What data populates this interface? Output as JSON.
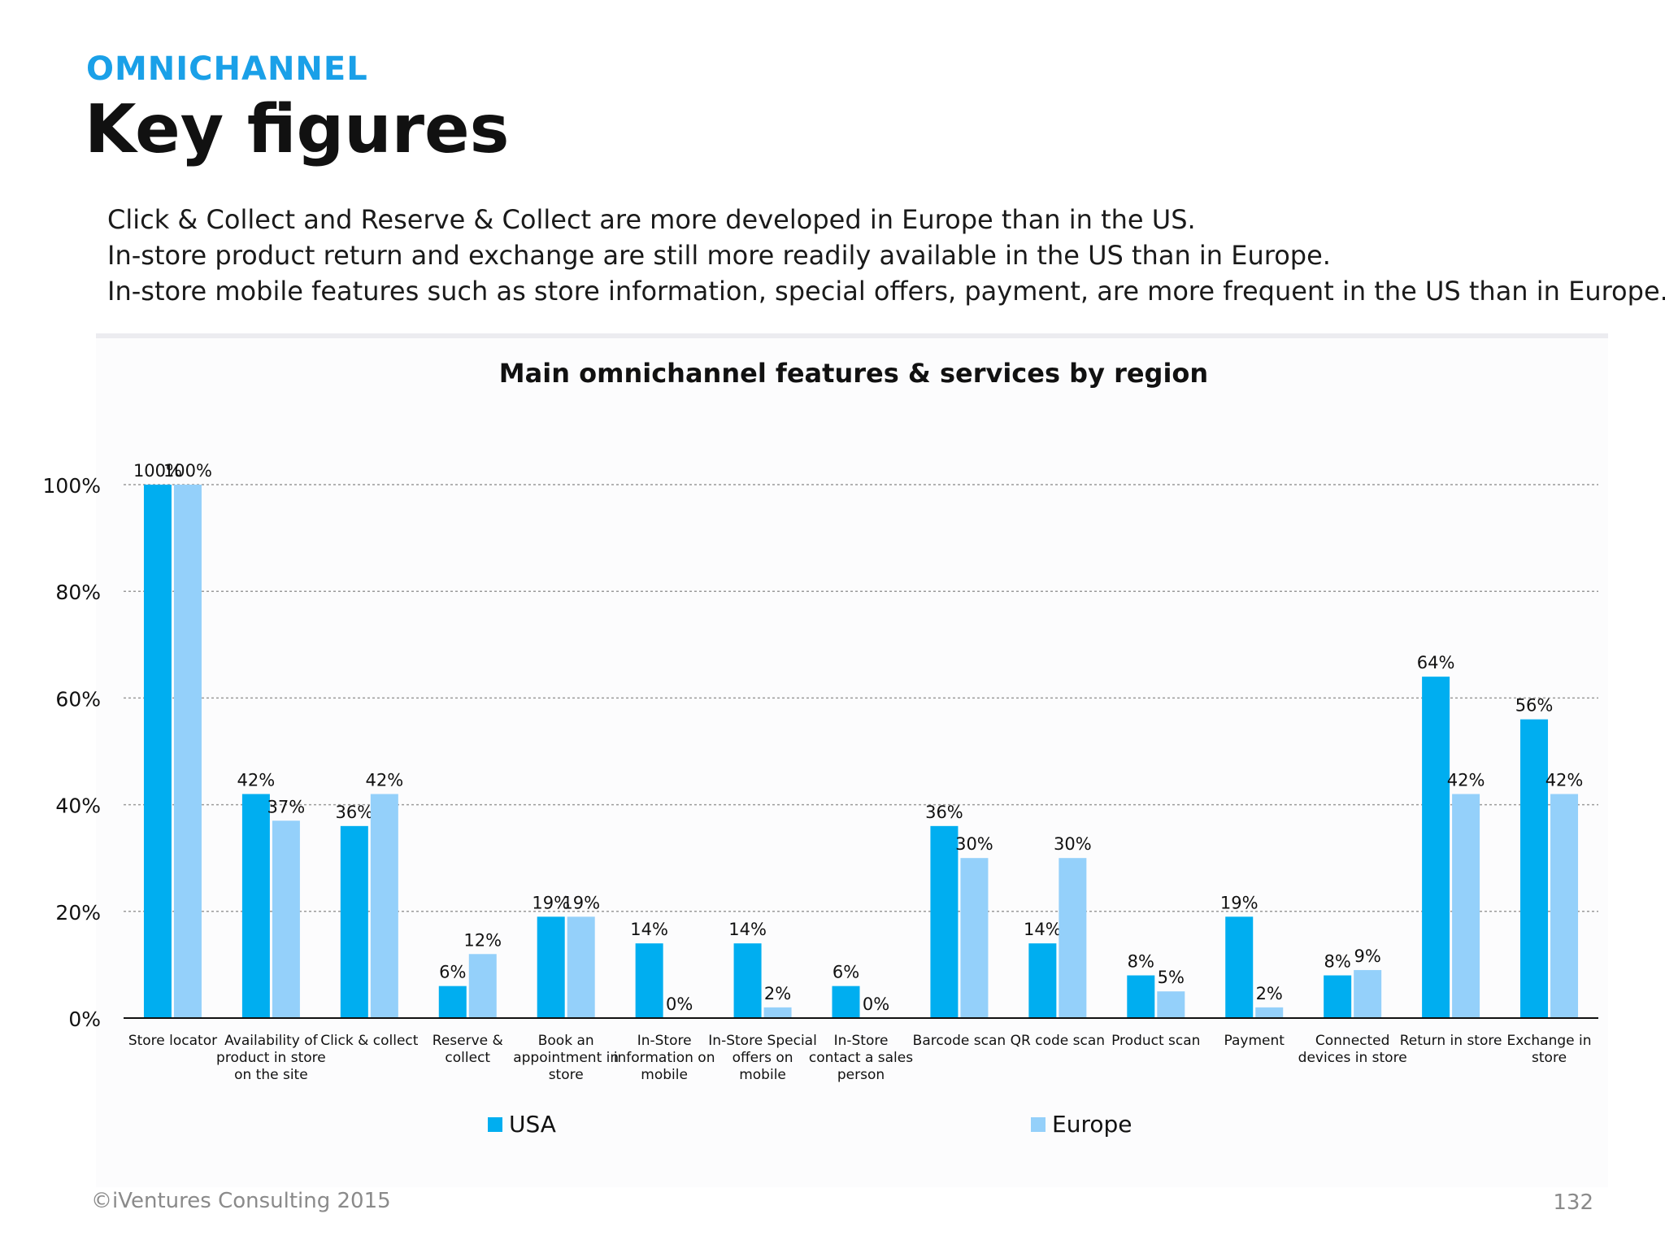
{
  "header": {
    "section": "OMNICHANNEL",
    "title": "Key figures"
  },
  "intro_lines": [
    "Click & Collect and Reserve & Collect are more developed in Europe than in the US.",
    "In-store product return and exchange are still more readily available in the US than in Europe.",
    "In-store mobile features such as store information, special offers, payment, are more frequent in the US than in Europe."
  ],
  "footer": {
    "copyright": "©iVentures Consulting 2015",
    "page_number": "132"
  },
  "colors": {
    "usa": "#00aef0",
    "europe": "#94d0fa",
    "accent": "#1aa0e8"
  },
  "chart_data": {
    "type": "bar",
    "title": "Main omnichannel features & services by region",
    "xlabel": "",
    "ylabel": "",
    "ylim": [
      0,
      100
    ],
    "yticks": [
      "0%",
      "20%",
      "40%",
      "60%",
      "80%",
      "100%"
    ],
    "grid": true,
    "legend_position": "bottom",
    "categories": [
      [
        "Store locator"
      ],
      [
        "Availability of",
        "product in store",
        "on the site"
      ],
      [
        "Click & collect"
      ],
      [
        "Reserve &",
        "collect"
      ],
      [
        "Book an",
        "appointment in",
        "store"
      ],
      [
        "In-Store",
        "information on",
        "mobile"
      ],
      [
        "In-Store Special",
        "offers on",
        "mobile"
      ],
      [
        "In-Store",
        "contact a sales",
        "person"
      ],
      [
        "Barcode scan"
      ],
      [
        "QR code scan"
      ],
      [
        "Product scan"
      ],
      [
        "Payment"
      ],
      [
        "Connected",
        "devices in store"
      ],
      [
        "Return in store"
      ],
      [
        "Exchange in",
        "store"
      ]
    ],
    "series": [
      {
        "name": "USA",
        "values": [
          100,
          42,
          36,
          6,
          19,
          14,
          14,
          6,
          36,
          14,
          8,
          19,
          8,
          64,
          56
        ]
      },
      {
        "name": "Europe",
        "values": [
          100,
          37,
          42,
          12,
          19,
          0,
          2,
          0,
          30,
          30,
          5,
          2,
          9,
          42,
          42
        ]
      }
    ]
  }
}
